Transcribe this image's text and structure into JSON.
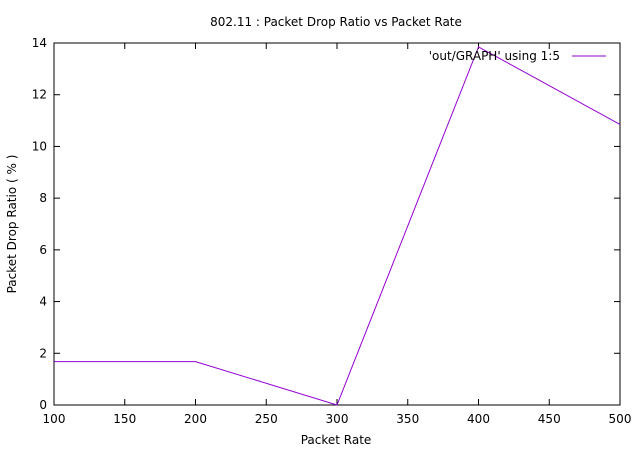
{
  "chart_data": {
    "type": "line",
    "title": "802.11 : Packet Drop Ratio vs Packet Rate",
    "xlabel": "Packet Rate",
    "ylabel": "Packet Drop Ratio ( % )",
    "xlim": [
      100,
      500
    ],
    "ylim": [
      0,
      14
    ],
    "xticks": [
      100,
      150,
      200,
      250,
      300,
      350,
      400,
      450,
      500
    ],
    "yticks": [
      0,
      2,
      4,
      6,
      8,
      10,
      12,
      14
    ],
    "grid": false,
    "legend_position": "top-right",
    "series": [
      {
        "name": "'out/GRAPH' using 1:5",
        "color": "#9400d3",
        "x": [
          100,
          200,
          300,
          400,
          500
        ],
        "y": [
          1.68,
          1.68,
          0.0,
          13.85,
          10.85
        ]
      }
    ]
  }
}
